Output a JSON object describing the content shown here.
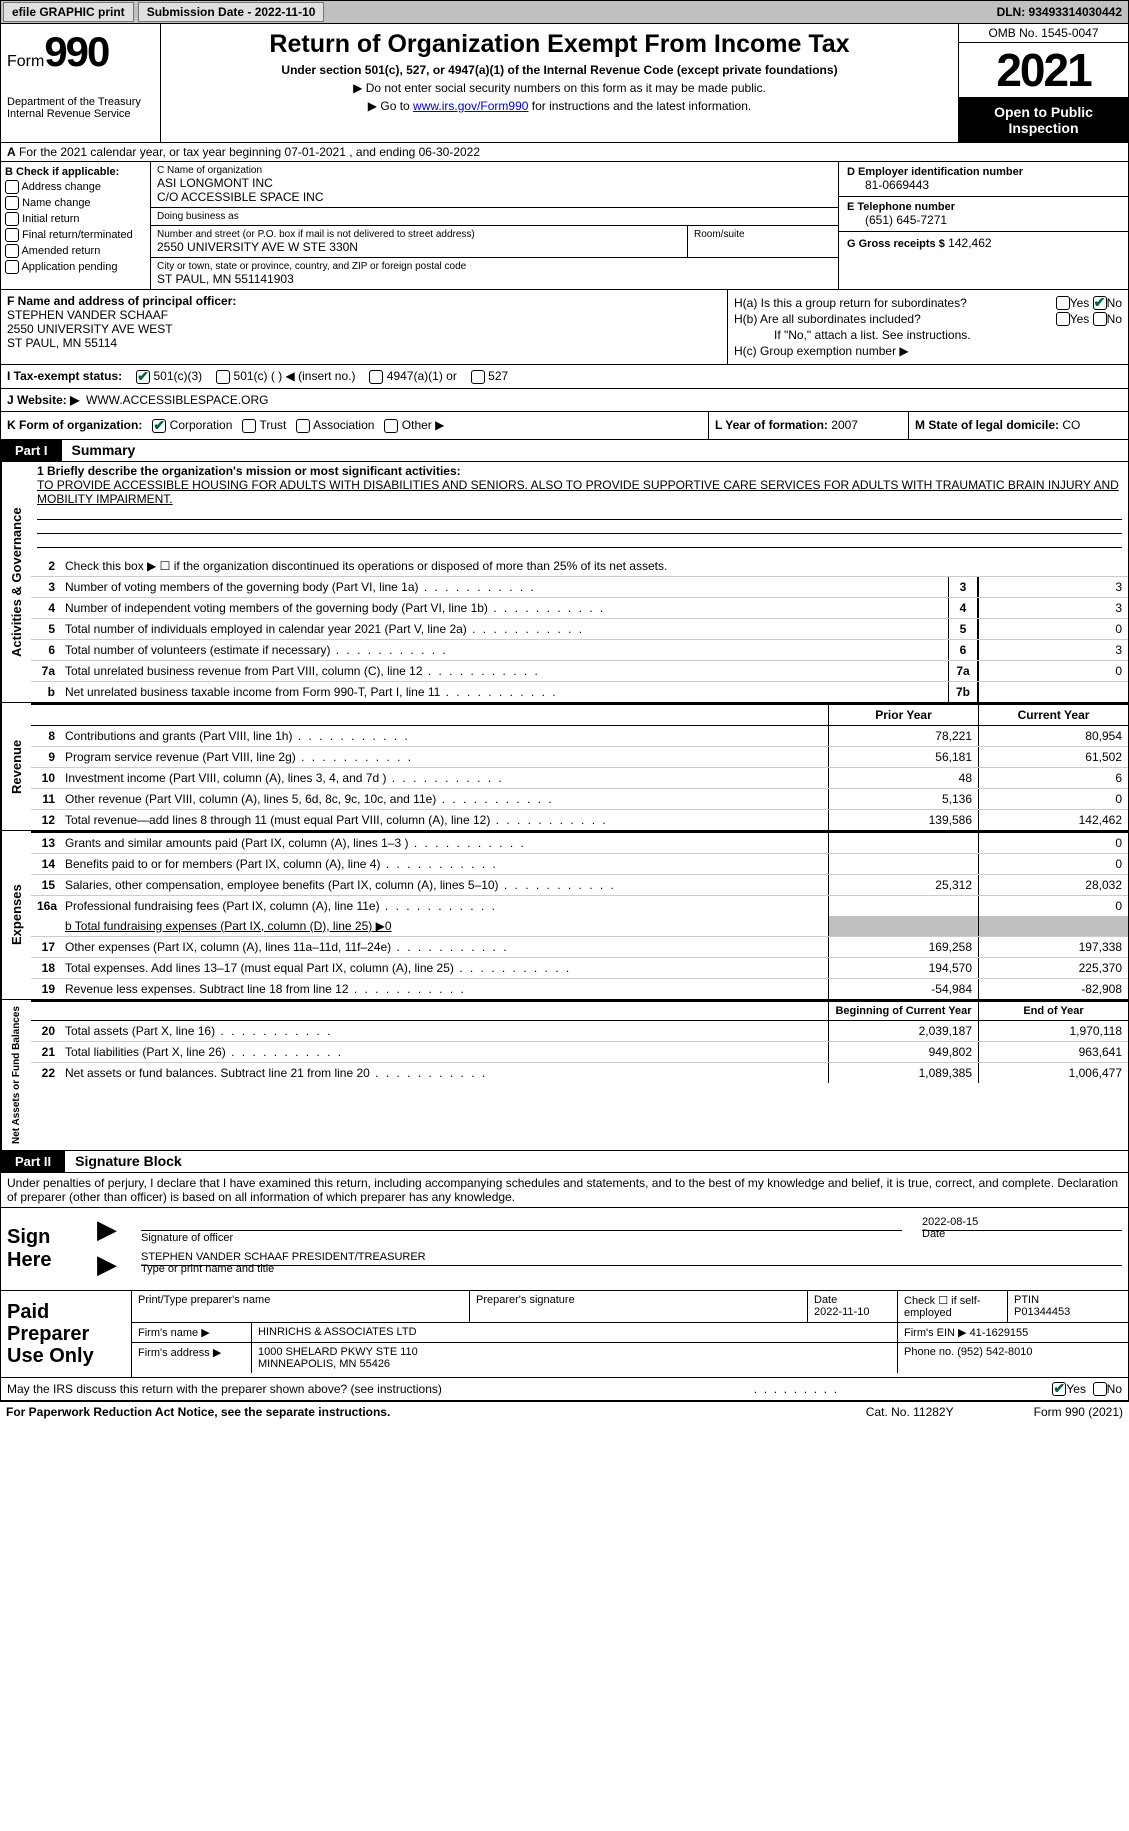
{
  "top": {
    "efile": "efile GRAPHIC print",
    "submission": "Submission Date - 2022-11-10",
    "dln": "DLN: 93493314030442"
  },
  "header": {
    "form": "Form",
    "formnum": "990",
    "dept": "Department of the Treasury Internal Revenue Service",
    "title": "Return of Organization Exempt From Income Tax",
    "sub": "Under section 501(c), 527, or 4947(a)(1) of the Internal Revenue Code (except private foundations)",
    "note1": "▶ Do not enter social security numbers on this form as it may be made public.",
    "note2_pre": "▶ Go to ",
    "note2_link": "www.irs.gov/Form990",
    "note2_post": " for instructions and the latest information.",
    "omb": "OMB No. 1545-0047",
    "year": "2021",
    "open": "Open to Public Inspection"
  },
  "rowA": {
    "label": "A",
    "text": "For the 2021 calendar year, or tax year beginning 07-01-2021    , and ending 06-30-2022"
  },
  "B": {
    "label": "B Check if applicable:",
    "opts": [
      "Address change",
      "Name change",
      "Initial return",
      "Final return/terminated",
      "Amended return",
      "Application pending"
    ]
  },
  "C": {
    "name_lbl": "C Name of organization",
    "name": "ASI LONGMONT INC\nC/O ACCESSIBLE SPACE INC",
    "dba_lbl": "Doing business as",
    "dba": "",
    "street_lbl": "Number and street (or P.O. box if mail is not delivered to street address)",
    "street": "2550 UNIVERSITY AVE W STE 330N",
    "suite_lbl": "Room/suite",
    "city_lbl": "City or town, state or province, country, and ZIP or foreign postal code",
    "city": "ST PAUL, MN  551141903"
  },
  "D": {
    "ein_lbl": "D Employer identification number",
    "ein": "81-0669443",
    "tel_lbl": "E Telephone number",
    "tel": "(651) 645-7271",
    "gross_lbl": "G Gross receipts $",
    "gross": "142,462"
  },
  "F": {
    "lbl": "F Name and address of principal officer:",
    "name": "STEPHEN VANDER SCHAAF",
    "addr1": "2550 UNIVERSITY AVE WEST",
    "addr2": "ST PAUL, MN  55114"
  },
  "H": {
    "a": "H(a)  Is this a group return for subordinates?",
    "b": "H(b)  Are all subordinates included?",
    "bnote": "If \"No,\" attach a list. See instructions.",
    "c": "H(c)  Group exemption number ▶"
  },
  "I": {
    "lbl": "I   Tax-exempt status:",
    "o1": "501(c)(3)",
    "o2": "501(c) (   ) ◀ (insert no.)",
    "o3": "4947(a)(1) or",
    "o4": "527"
  },
  "J": {
    "lbl": "J   Website: ▶",
    "val": "WWW.ACCESSIBLESPACE.ORG"
  },
  "K": {
    "lbl": "K Form of organization:",
    "o1": "Corporation",
    "o2": "Trust",
    "o3": "Association",
    "o4": "Other ▶"
  },
  "L": {
    "lbl": "L Year of formation:",
    "val": "2007"
  },
  "M": {
    "lbl": "M State of legal domicile:",
    "val": "CO"
  },
  "part1": {
    "tab": "Part I",
    "title": "Summary"
  },
  "summary": {
    "side1": "Activities & Governance",
    "line1_lbl": "1   Briefly describe the organization's mission or most significant activities:",
    "line1_txt": "TO PROVIDE ACCESSIBLE HOUSING FOR ADULTS WITH DISABILITIES AND SENIORS. ALSO TO PROVIDE SUPPORTIVE CARE SERVICES FOR ADULTS WITH TRAUMATIC BRAIN INJURY AND MOBILITY IMPAIRMENT.",
    "line2": "Check this box ▶ ☐ if the organization discontinued its operations or disposed of more than 25% of its net assets.",
    "rows_ag": [
      {
        "n": "3",
        "t": "Number of voting members of the governing body (Part VI, line 1a)",
        "box": "3",
        "v": "3"
      },
      {
        "n": "4",
        "t": "Number of independent voting members of the governing body (Part VI, line 1b)",
        "box": "4",
        "v": "3"
      },
      {
        "n": "5",
        "t": "Total number of individuals employed in calendar year 2021 (Part V, line 2a)",
        "box": "5",
        "v": "0"
      },
      {
        "n": "6",
        "t": "Total number of volunteers (estimate if necessary)",
        "box": "6",
        "v": "3"
      },
      {
        "n": "7a",
        "t": "Total unrelated business revenue from Part VIII, column (C), line 12",
        "box": "7a",
        "v": "0"
      },
      {
        "n": "b",
        "t": "Net unrelated business taxable income from Form 990-T, Part I, line 11",
        "box": "7b",
        "v": ""
      }
    ],
    "side2": "Revenue",
    "rev_head_prior": "Prior Year",
    "rev_head_curr": "Current Year",
    "rows_rev": [
      {
        "n": "8",
        "t": "Contributions and grants (Part VIII, line 1h)",
        "p": "78,221",
        "c": "80,954"
      },
      {
        "n": "9",
        "t": "Program service revenue (Part VIII, line 2g)",
        "p": "56,181",
        "c": "61,502"
      },
      {
        "n": "10",
        "t": "Investment income (Part VIII, column (A), lines 3, 4, and 7d )",
        "p": "48",
        "c": "6"
      },
      {
        "n": "11",
        "t": "Other revenue (Part VIII, column (A), lines 5, 6d, 8c, 9c, 10c, and 11e)",
        "p": "5,136",
        "c": "0"
      },
      {
        "n": "12",
        "t": "Total revenue—add lines 8 through 11 (must equal Part VIII, column (A), line 12)",
        "p": "139,586",
        "c": "142,462"
      }
    ],
    "side3": "Expenses",
    "rows_exp": [
      {
        "n": "13",
        "t": "Grants and similar amounts paid (Part IX, column (A), lines 1–3 )",
        "p": "",
        "c": "0"
      },
      {
        "n": "14",
        "t": "Benefits paid to or for members (Part IX, column (A), line 4)",
        "p": "",
        "c": "0"
      },
      {
        "n": "15",
        "t": "Salaries, other compensation, employee benefits (Part IX, column (A), lines 5–10)",
        "p": "25,312",
        "c": "28,032"
      },
      {
        "n": "16a",
        "t": "Professional fundraising fees (Part IX, column (A), line 11e)",
        "p": "",
        "c": "0"
      }
    ],
    "line16b": "b  Total fundraising expenses (Part IX, column (D), line 25) ▶0",
    "rows_exp2": [
      {
        "n": "17",
        "t": "Other expenses (Part IX, column (A), lines 11a–11d, 11f–24e)",
        "p": "169,258",
        "c": "197,338"
      },
      {
        "n": "18",
        "t": "Total expenses. Add lines 13–17 (must equal Part IX, column (A), line 25)",
        "p": "194,570",
        "c": "225,370"
      },
      {
        "n": "19",
        "t": "Revenue less expenses. Subtract line 18 from line 12",
        "p": "-54,984",
        "c": "-82,908"
      }
    ],
    "side4": "Net Assets or Fund Balances",
    "na_head_b": "Beginning of Current Year",
    "na_head_e": "End of Year",
    "rows_na": [
      {
        "n": "20",
        "t": "Total assets (Part X, line 16)",
        "p": "2,039,187",
        "c": "1,970,118"
      },
      {
        "n": "21",
        "t": "Total liabilities (Part X, line 26)",
        "p": "949,802",
        "c": "963,641"
      },
      {
        "n": "22",
        "t": "Net assets or fund balances. Subtract line 21 from line 20",
        "p": "1,089,385",
        "c": "1,006,477"
      }
    ]
  },
  "part2": {
    "tab": "Part II",
    "title": "Signature Block"
  },
  "sig": {
    "intro": "Under penalties of perjury, I declare that I have examined this return, including accompanying schedules and statements, and to the best of my knowledge and belief, it is true, correct, and complete. Declaration of preparer (other than officer) is based on all information of which preparer has any knowledge.",
    "sign_here": "Sign Here",
    "sig_of_officer": "Signature of officer",
    "date": "Date",
    "date_val": "2022-08-15",
    "name": "STEPHEN VANDER SCHAAF  PRESIDENT/TREASURER",
    "type_name": "Type or print name and title"
  },
  "prep": {
    "label": "Paid Preparer Use Only",
    "r1": {
      "c1": "Print/Type preparer's name",
      "c2": "Preparer's signature",
      "c3": "Date\n2022-11-10",
      "c4": "Check ☐ if self-employed",
      "c5": "PTIN\nP01344453"
    },
    "r2": {
      "lbl": "Firm's name    ▶",
      "val": "HINRICHS & ASSOCIATES LTD",
      "ein_lbl": "Firm's EIN ▶",
      "ein": "41-1629155"
    },
    "r3": {
      "lbl": "Firm's address ▶",
      "val": "1000 SHELARD PKWY STE 110\nMINNEAPOLIS, MN  55426",
      "ph_lbl": "Phone no.",
      "ph": "(952) 542-8010"
    }
  },
  "may": {
    "txt": "May the IRS discuss this return with the preparer shown above? (see instructions)",
    "yes": "Yes",
    "no": "No"
  },
  "footer": {
    "left": "For Paperwork Reduction Act Notice, see the separate instructions.",
    "center": "Cat. No. 11282Y",
    "right": "Form 990 (2021)"
  },
  "yn": {
    "yes": "Yes",
    "no": "No"
  }
}
